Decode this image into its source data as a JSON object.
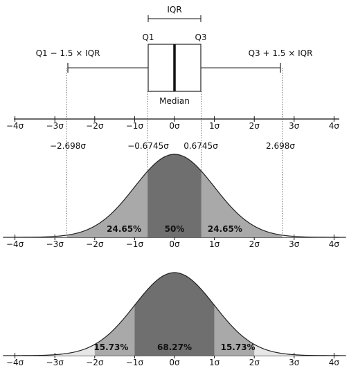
{
  "colors": {
    "outer": "#e6e6e6",
    "middle": "#a9a9a9",
    "inner": "#6f6f6f",
    "line": "#222222",
    "dotted": "#444444"
  },
  "boxplot": {
    "iqr_label": "IQR",
    "q1_label": "Q1",
    "q3_label": "Q3",
    "median_label": "Median",
    "lower_whisker_label": "Q1 − 1.5 × IQR",
    "upper_whisker_label": "Q3 + 1.5 × IQR"
  },
  "axis_ticks": [
    "−4σ",
    "−3σ",
    "−2σ",
    "−1σ",
    "0σ",
    "1σ",
    "2σ",
    "3σ",
    "4σ"
  ],
  "chart_data": [
    {
      "type": "area",
      "title": "",
      "xlabel": "",
      "ylabel": "",
      "x_range": [
        -4,
        4
      ],
      "boundaries": [
        -2.698,
        -0.6745,
        0.6745,
        2.698
      ],
      "boundary_labels": [
        "−2.698σ",
        "−0.6745σ",
        "0.6745σ",
        "2.698σ"
      ],
      "regions": [
        {
          "from": -2.698,
          "to": -0.6745,
          "label": "24.65%"
        },
        {
          "from": -0.6745,
          "to": 0.6745,
          "label": "50%"
        },
        {
          "from": 0.6745,
          "to": 2.698,
          "label": "24.65%"
        }
      ]
    },
    {
      "type": "area",
      "title": "",
      "xlabel": "",
      "ylabel": "",
      "x_range": [
        -4,
        4
      ],
      "boundaries": [
        -1,
        1
      ],
      "regions": [
        {
          "from": -2,
          "to": -1,
          "label": "15.73%"
        },
        {
          "from": -1,
          "to": 1,
          "label": "68.27%"
        },
        {
          "from": 1,
          "to": 2,
          "label": "15.73%"
        }
      ]
    }
  ]
}
